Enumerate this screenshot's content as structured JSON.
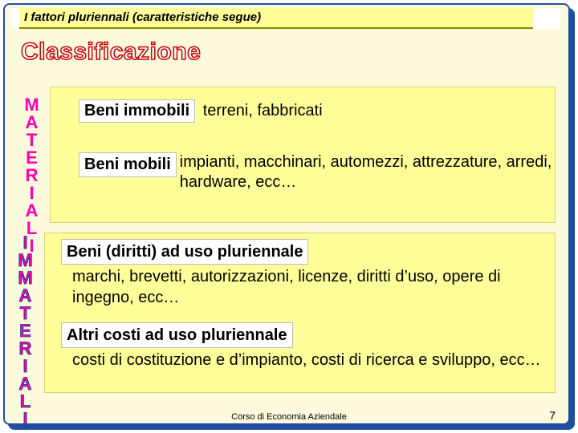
{
  "colors": {
    "border": "#1f4ea1",
    "slide_bg": "#fdfbdc",
    "highlight_bg": "#ffff99",
    "tag_bg": "#ffffff",
    "classif_outline": "#c80000",
    "vertical_label": "#ff00b4"
  },
  "title": "I fattori pluriennali (caratteristiche segue)",
  "heading": "Classificazione",
  "vertical_labels": {
    "materiali": "MATERIALI",
    "immateriali": "IMMATERIALI"
  },
  "sections": {
    "materiali": [
      {
        "tag": "Beni immobili",
        "desc": "terreni, fabbricati"
      },
      {
        "tag": "Beni mobili",
        "desc": "impianti, macchinari, automezzi, attrezzature, arredi, hardware, ecc…"
      }
    ],
    "immateriali": [
      {
        "tag": "Beni (diritti) ad uso pluriennale",
        "desc": "marchi, brevetti, autorizzazioni, licenze, diritti d’uso, opere di ingegno, ecc…"
      },
      {
        "tag": "Altri costi ad uso pluriennale",
        "desc": "costi di costituzione  e d’impianto, costi di ricerca e sviluppo, ecc…"
      }
    ]
  },
  "footer": "Corso di Economia Aziendale",
  "page_number": "7"
}
